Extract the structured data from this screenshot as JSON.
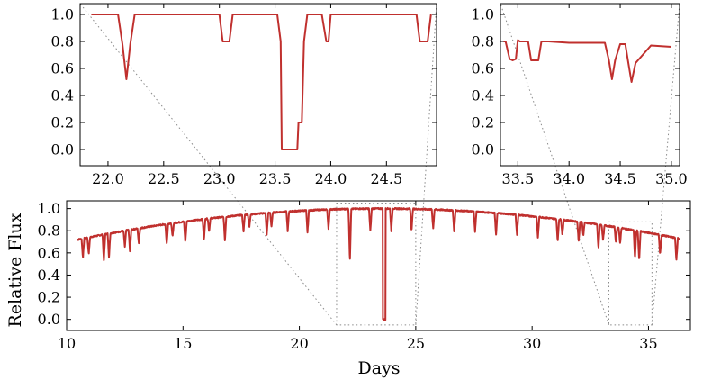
{
  "chart_data": [
    {
      "id": "inset-left",
      "type": "line",
      "title": "",
      "xlabel": "",
      "ylabel": "",
      "xlim": [
        21.75,
        24.95
      ],
      "ylim": [
        -0.12,
        1.08
      ],
      "xticks": [
        "22.0",
        "22.5",
        "23.0",
        "23.5",
        "24.0",
        "24.5"
      ],
      "yticks": [
        "0.0",
        "0.2",
        "0.4",
        "0.6",
        "0.8",
        "1.0"
      ],
      "xtick_values": [
        22.0,
        22.5,
        23.0,
        23.5,
        24.0,
        24.5
      ],
      "ytick_values": [
        0.0,
        0.2,
        0.4,
        0.6,
        0.8,
        1.0
      ],
      "series": [
        {
          "name": "Relative Flux",
          "color": "#c0302e",
          "x": [
            21.85,
            22.09,
            22.13,
            22.165,
            22.2,
            22.24,
            23.0,
            23.03,
            23.05,
            23.09,
            23.12,
            23.52,
            23.55,
            23.56,
            23.7,
            23.71,
            23.74,
            23.76,
            23.79,
            23.85,
            23.92,
            23.96,
            23.98,
            24.0,
            24.77,
            24.8,
            24.84,
            24.87,
            24.9
          ],
          "y": [
            1.0,
            1.0,
            0.78,
            0.52,
            0.78,
            1.0,
            1.0,
            0.8,
            0.8,
            0.8,
            1.0,
            1.0,
            0.8,
            0.0,
            0.0,
            0.2,
            0.2,
            0.8,
            1.0,
            1.0,
            1.0,
            0.8,
            0.8,
            1.0,
            1.0,
            0.8,
            0.8,
            0.8,
            1.0
          ]
        }
      ]
    },
    {
      "id": "inset-right",
      "type": "line",
      "title": "",
      "xlabel": "",
      "ylabel": "",
      "xlim": [
        33.33,
        35.08
      ],
      "ylim": [
        -0.12,
        1.08
      ],
      "xticks": [
        "33.5",
        "34.0",
        "34.5",
        "35.0"
      ],
      "yticks": [
        "0.0",
        "0.2",
        "0.4",
        "0.6",
        "0.8",
        "1.0"
      ],
      "xtick_values": [
        33.5,
        34.0,
        34.5,
        35.0
      ],
      "ytick_values": [
        0.0,
        0.2,
        0.4,
        0.6,
        0.8,
        1.0
      ],
      "series": [
        {
          "name": "Relative Flux",
          "color": "#c0302e",
          "x": [
            33.36,
            33.38,
            33.42,
            33.45,
            33.48,
            33.5,
            33.52,
            33.55,
            33.6,
            33.63,
            33.66,
            33.7,
            33.73,
            33.8,
            34.0,
            34.2,
            34.35,
            34.39,
            34.42,
            34.45,
            34.5,
            34.55,
            34.58,
            34.61,
            34.65,
            34.8,
            35.0
          ],
          "y": [
            0.8,
            0.8,
            0.67,
            0.66,
            0.67,
            0.81,
            0.8,
            0.8,
            0.8,
            0.66,
            0.66,
            0.66,
            0.8,
            0.8,
            0.79,
            0.79,
            0.79,
            0.66,
            0.52,
            0.66,
            0.78,
            0.78,
            0.64,
            0.5,
            0.64,
            0.77,
            0.76
          ]
        }
      ]
    },
    {
      "id": "main",
      "type": "line",
      "title": "",
      "xlabel": "Days",
      "ylabel": "Relative Flux",
      "xlim": [
        10.0,
        36.8
      ],
      "ylim": [
        -0.1,
        1.07
      ],
      "xticks": [
        "10",
        "15",
        "20",
        "25",
        "30",
        "35"
      ],
      "yticks": [
        "0.0",
        "0.2",
        "0.4",
        "0.6",
        "0.8",
        "1.0"
      ],
      "xtick_values": [
        10,
        15,
        20,
        25,
        30,
        35
      ],
      "ytick_values": [
        0.0,
        0.2,
        0.4,
        0.6,
        0.8,
        1.0
      ],
      "baseline": {
        "description": "parabolic out-of-eclipse envelope",
        "peak_day": 23.5,
        "peak_flux": 1.0,
        "curvature": 0.00165
      },
      "dips": [
        {
          "day": 10.7,
          "depth": 0.17
        },
        {
          "day": 10.95,
          "depth": 0.15
        },
        {
          "day": 11.6,
          "depth": 0.24
        },
        {
          "day": 11.82,
          "depth": 0.22
        },
        {
          "day": 12.5,
          "depth": 0.15
        },
        {
          "day": 12.72,
          "depth": 0.2
        },
        {
          "day": 13.1,
          "depth": 0.14
        },
        {
          "day": 14.3,
          "depth": 0.18
        },
        {
          "day": 14.55,
          "depth": 0.12
        },
        {
          "day": 15.1,
          "depth": 0.19
        },
        {
          "day": 15.9,
          "depth": 0.19
        },
        {
          "day": 16.12,
          "depth": 0.12
        },
        {
          "day": 16.8,
          "depth": 0.22
        },
        {
          "day": 17.6,
          "depth": 0.15
        },
        {
          "day": 17.85,
          "depth": 0.12
        },
        {
          "day": 18.6,
          "depth": 0.2
        },
        {
          "day": 18.8,
          "depth": 0.13
        },
        {
          "day": 19.5,
          "depth": 0.18
        },
        {
          "day": 20.35,
          "depth": 0.2
        },
        {
          "day": 21.25,
          "depth": 0.18
        },
        {
          "day": 22.17,
          "depth": 0.48
        },
        {
          "day": 23.05,
          "depth": 0.2
        },
        {
          "day": 23.65,
          "depth": 1.0
        },
        {
          "day": 23.95,
          "depth": 0.2
        },
        {
          "day": 24.82,
          "depth": 0.2
        },
        {
          "day": 25.75,
          "depth": 0.17
        },
        {
          "day": 26.65,
          "depth": 0.19
        },
        {
          "day": 27.55,
          "depth": 0.18
        },
        {
          "day": 28.45,
          "depth": 0.2
        },
        {
          "day": 29.35,
          "depth": 0.18
        },
        {
          "day": 30.25,
          "depth": 0.19
        },
        {
          "day": 31.1,
          "depth": 0.2
        },
        {
          "day": 31.3,
          "depth": 0.14
        },
        {
          "day": 32.0,
          "depth": 0.18
        },
        {
          "day": 32.2,
          "depth": 0.12
        },
        {
          "day": 32.85,
          "depth": 0.22
        },
        {
          "day": 33.05,
          "depth": 0.14
        },
        {
          "day": 33.6,
          "depth": 0.14
        },
        {
          "day": 33.78,
          "depth": 0.14
        },
        {
          "day": 34.42,
          "depth": 0.26
        },
        {
          "day": 34.6,
          "depth": 0.27
        },
        {
          "day": 35.5,
          "depth": 0.18
        },
        {
          "day": 36.2,
          "depth": 0.2
        }
      ],
      "zoom_regions": [
        {
          "x0": 21.6,
          "x1": 25.0,
          "y0": -0.05,
          "y1": 1.05,
          "target": "inset-left"
        },
        {
          "x0": 33.3,
          "x1": 35.15,
          "y0": -0.05,
          "y1": 0.88,
          "target": "inset-right"
        }
      ]
    }
  ]
}
